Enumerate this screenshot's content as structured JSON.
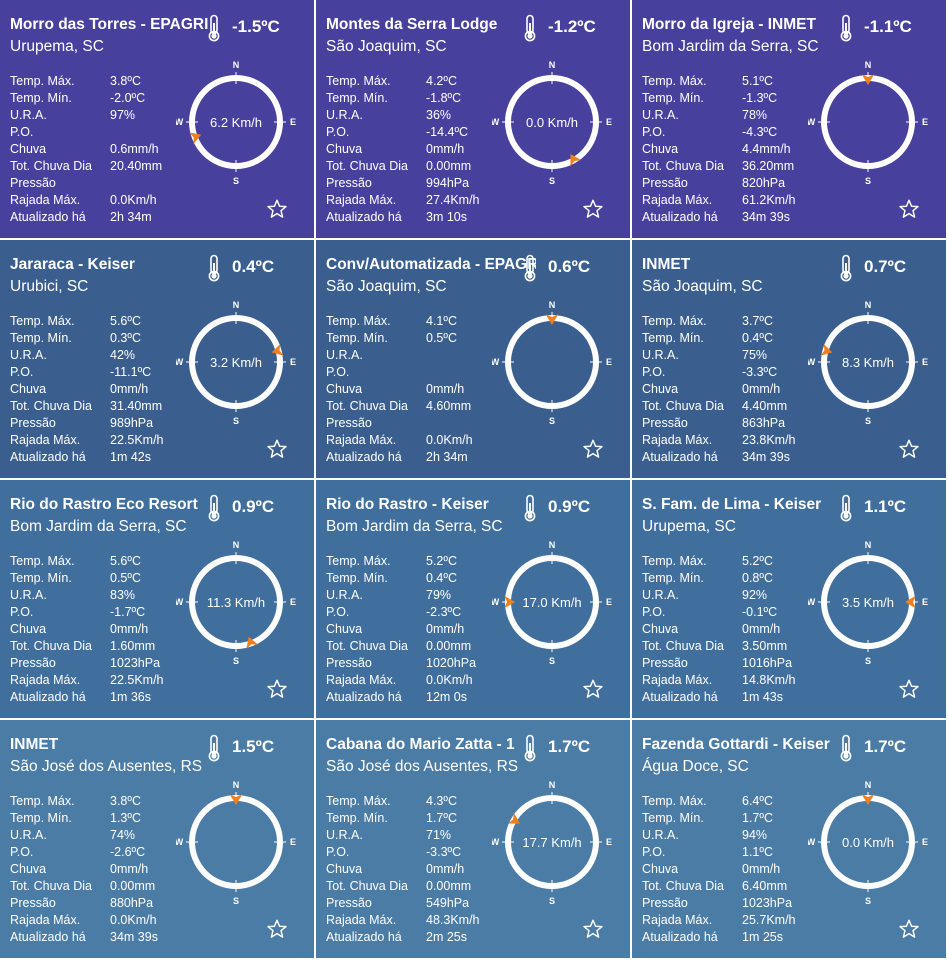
{
  "labels": {
    "temp_max": "Temp. Máx.",
    "temp_min": "Temp. Mín.",
    "ura": "U.R.A.",
    "po": "P.O.",
    "chuva": "Chuva",
    "tot_chuva": "Tot. Chuva Dia",
    "pressao": "Pressão",
    "rajada": "Rajada Máx.",
    "atualizado": "Atualizado há",
    "compass_n": "N",
    "compass_s": "S",
    "compass_e": "E",
    "compass_w": "W"
  },
  "colors": {
    "row1": "#48409d",
    "row2": "#3a5f8f",
    "row3": "#416f9d",
    "row4": "#4b7ca6",
    "arrow": "#f07f1e",
    "ring": "#ffffff"
  },
  "icons": {
    "thermometer": "thermometer-icon",
    "favorite": "star-outline-icon"
  },
  "stations": [
    {
      "name": "Morro das Torres - EPAGRI",
      "place": "Urupema, SC",
      "temp": "-1.5ºC",
      "max": "3.8ºC",
      "min": "-2.0ºC",
      "ura": "97%",
      "po": "",
      "chuva": "0.6mm/h",
      "tot": "20.40mm",
      "pressao": "",
      "rajada": "0.0Km/h",
      "atualizado": "2h 34m",
      "wind": "6.2 Km/h",
      "dir_deg": 250
    },
    {
      "name": "Montes da Serra Lodge",
      "place": "São Joaquim, SC",
      "temp": "-1.2ºC",
      "max": "4.2ºC",
      "min": "-1.8ºC",
      "ura": "36%",
      "po": "-14.4ºC",
      "chuva": "0mm/h",
      "tot": "0.00mm",
      "pressao": "994hPa",
      "rajada": "27.4Km/h",
      "atualizado": "3m 10s",
      "wind": "0.0 Km/h",
      "dir_deg": 150
    },
    {
      "name": "Morro da Igreja - INMET",
      "place": "Bom Jardim da Serra, SC",
      "temp": "-1.1ºC",
      "max": "5.1ºC",
      "min": "-1.3ºC",
      "ura": "78%",
      "po": "-4.3ºC",
      "chuva": "4.4mm/h",
      "tot": "36.20mm",
      "pressao": "820hPa",
      "rajada": "61.2Km/h",
      "atualizado": "34m 39s",
      "wind": "",
      "dir_deg": 0
    },
    {
      "name": "Jararaca - Keiser",
      "place": "Urubici, SC",
      "temp": "0.4ºC",
      "max": "5.6ºC",
      "min": "0.3ºC",
      "ura": "42%",
      "po": "-11.1ºC",
      "chuva": "0mm/h",
      "tot": "31.40mm",
      "pressao": "989hPa",
      "rajada": "22.5Km/h",
      "atualizado": "1m 42s",
      "wind": "3.2 Km/h",
      "dir_deg": 75
    },
    {
      "name": "Conv/Automatizada - EPAGRI",
      "place": "São Joaquim, SC",
      "temp": "0.6ºC",
      "max": "4.1ºC",
      "min": "0.5ºC",
      "ura": "",
      "po": "",
      "chuva": "0mm/h",
      "tot": "4.60mm",
      "pressao": "",
      "rajada": "0.0Km/h",
      "atualizado": "2h 34m",
      "wind": "",
      "dir_deg": 0
    },
    {
      "name": "INMET",
      "place": "São Joaquim, SC",
      "temp": "0.7ºC",
      "max": "3.7ºC",
      "min": "0.4ºC",
      "ura": "75%",
      "po": "-3.3ºC",
      "chuva": "0mm/h",
      "tot": "4.40mm",
      "pressao": "863hPa",
      "rajada": "23.8Km/h",
      "atualizado": "34m 39s",
      "wind": "8.3 Km/h",
      "dir_deg": 285
    },
    {
      "name": "Rio do Rastro Eco Resort",
      "place": "Bom Jardim da Serra, SC",
      "temp": "0.9ºC",
      "max": "5.6ºC",
      "min": "0.5ºC",
      "ura": "83%",
      "po": "-1.7ºC",
      "chuva": "0mm/h",
      "tot": "1.60mm",
      "pressao": "1023hPa",
      "rajada": "22.5Km/h",
      "atualizado": "1m 36s",
      "wind": "11.3 Km/h",
      "dir_deg": 160
    },
    {
      "name": "Rio do Rastro - Keiser",
      "place": "Bom Jardim da Serra, SC",
      "temp": "0.9ºC",
      "max": "5.2ºC",
      "min": "0.4ºC",
      "ura": "79%",
      "po": "-2.3ºC",
      "chuva": "0mm/h",
      "tot": "0.00mm",
      "pressao": "1020hPa",
      "rajada": "0.0Km/h",
      "atualizado": "12m 0s",
      "wind": "17.0 Km/h",
      "dir_deg": 270
    },
    {
      "name": "S. Fam. de Lima - Keiser",
      "place": "Urupema, SC",
      "temp": "1.1ºC",
      "max": "5.2ºC",
      "min": "0.8ºC",
      "ura": "92%",
      "po": "-0.1ºC",
      "chuva": "0mm/h",
      "tot": "3.50mm",
      "pressao": "1016hPa",
      "rajada": "14.8Km/h",
      "atualizado": "1m 43s",
      "wind": "3.5 Km/h",
      "dir_deg": 90
    },
    {
      "name": "INMET",
      "place": "São José dos Ausentes, RS",
      "temp": "1.5ºC",
      "max": "3.8ºC",
      "min": "1.3ºC",
      "ura": "74%",
      "po": "-2.6ºC",
      "chuva": "0mm/h",
      "tot": "0.00mm",
      "pressao": "880hPa",
      "rajada": "0.0Km/h",
      "atualizado": "34m 39s",
      "wind": "",
      "dir_deg": 0
    },
    {
      "name": "Cabana do Mario Zatta - 1",
      "place": "São José dos Ausentes, RS",
      "temp": "1.7ºC",
      "max": "4.3ºC",
      "min": "1.7ºC",
      "ura": "71%",
      "po": "-3.3ºC",
      "chuva": "0mm/h",
      "tot": "0.00mm",
      "pressao": "549hPa",
      "rajada": "48.3Km/h",
      "atualizado": "2m 25s",
      "wind": "17.7 Km/h",
      "dir_deg": 300
    },
    {
      "name": "Fazenda Gottardi - Keiser",
      "place": "Água Doce, SC",
      "temp": "1.7ºC",
      "max": "6.4ºC",
      "min": "1.7ºC",
      "ura": "94%",
      "po": "1.1ºC",
      "chuva": "0mm/h",
      "tot": "6.40mm",
      "pressao": "1023hPa",
      "rajada": "25.7Km/h",
      "atualizado": "1m 25s",
      "wind": "0.0 Km/h",
      "dir_deg": 0
    }
  ]
}
